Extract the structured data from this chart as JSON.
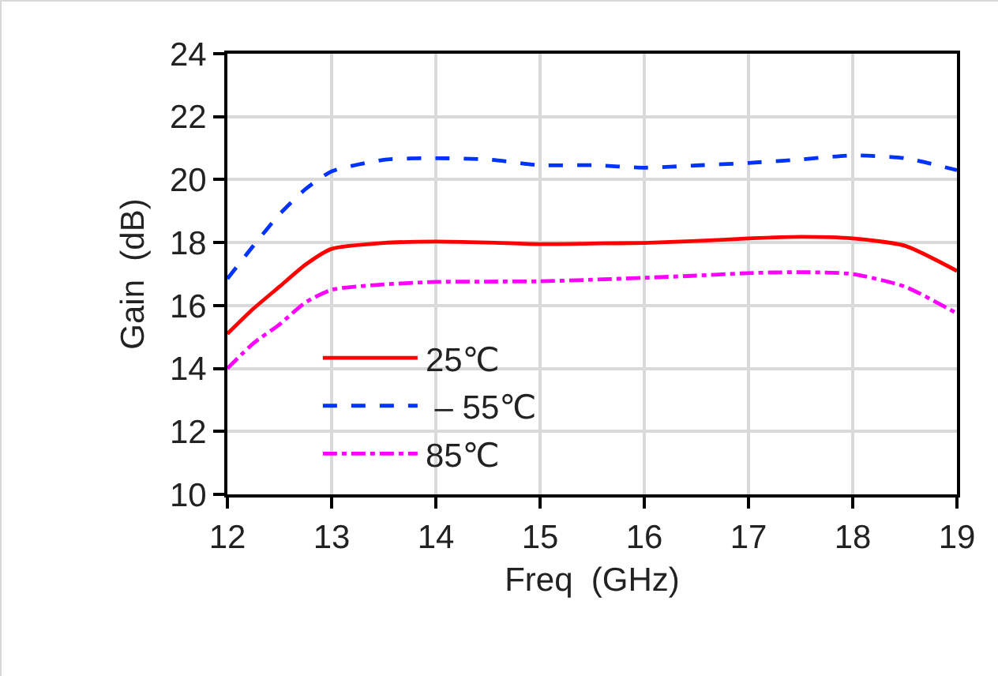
{
  "chart_data": {
    "type": "line",
    "xlabel": "Freq  (GHz)",
    "ylabel": "Gain  (dB)",
    "x": [
      12,
      12.25,
      12.5,
      12.75,
      13,
      13.5,
      14,
      14.5,
      15,
      15.5,
      16,
      16.5,
      17,
      17.5,
      18,
      18.5,
      19
    ],
    "series": [
      {
        "name": "25℃",
        "color": "#ff0000",
        "line_style": "solid",
        "values": [
          15.1,
          15.9,
          16.6,
          17.3,
          17.8,
          17.99,
          18.03,
          18.0,
          17.95,
          17.97,
          17.99,
          18.05,
          18.13,
          18.18,
          18.13,
          17.9,
          17.1
        ]
      },
      {
        "name": " – 55℃",
        "color": "#0033ff",
        "line_style": "dashed",
        "values": [
          16.85,
          17.9,
          18.9,
          19.7,
          20.26,
          20.63,
          20.68,
          20.64,
          20.46,
          20.46,
          20.38,
          20.45,
          20.53,
          20.64,
          20.77,
          20.68,
          20.3
        ]
      },
      {
        "name": "85℃",
        "color": "#ff00ff",
        "line_style": "dashdot",
        "values": [
          14.0,
          14.8,
          15.4,
          16.1,
          16.5,
          16.67,
          16.75,
          16.76,
          16.77,
          16.82,
          16.88,
          16.95,
          17.03,
          17.06,
          17.0,
          16.6,
          15.75
        ]
      }
    ],
    "xlim": [
      12,
      19
    ],
    "xticks": [
      12,
      13,
      14,
      15,
      16,
      17,
      18,
      19
    ],
    "ylim": [
      10,
      24
    ],
    "yticks": [
      10,
      12,
      14,
      16,
      18,
      20,
      22,
      24
    ],
    "grid": true,
    "legend": "bottom left"
  }
}
